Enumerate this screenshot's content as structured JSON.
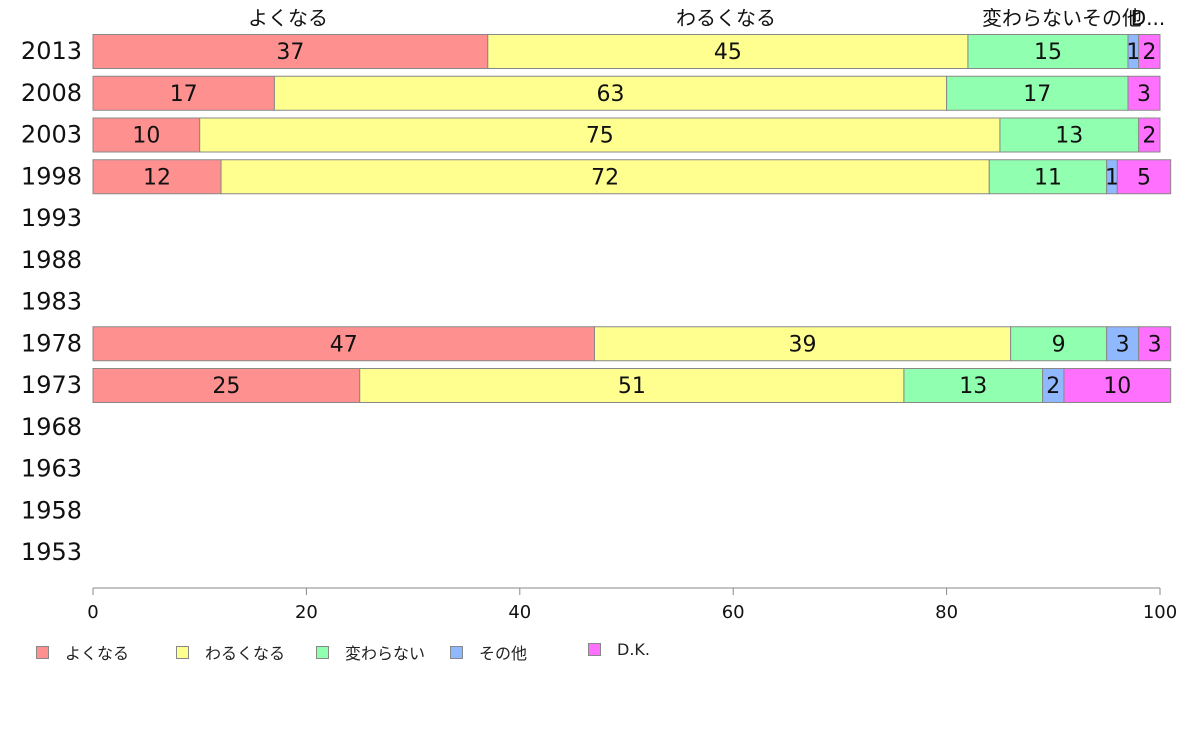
{
  "chart_data": {
    "type": "bar",
    "orientation": "horizontal",
    "stacked": true,
    "categories": [
      "2013",
      "2008",
      "2003",
      "1998",
      "1993",
      "1988",
      "1983",
      "1978",
      "1973",
      "1968",
      "1963",
      "1958",
      "1953"
    ],
    "series": [
      {
        "name": "よくなる",
        "color": "#ff9090",
        "values": [
          37,
          17,
          10,
          12,
          null,
          null,
          null,
          47,
          25,
          null,
          null,
          null,
          null
        ]
      },
      {
        "name": "わるくなる",
        "color": "#ffff90",
        "values": [
          45,
          63,
          75,
          72,
          null,
          null,
          null,
          39,
          51,
          null,
          null,
          null,
          null
        ]
      },
      {
        "name": "変わらない",
        "color": "#90ffb0",
        "values": [
          15,
          17,
          13,
          11,
          null,
          null,
          null,
          9,
          13,
          null,
          null,
          null,
          null
        ]
      },
      {
        "name": "その他",
        "color": "#90b8ff",
        "values": [
          1,
          0,
          0,
          1,
          null,
          null,
          null,
          3,
          2,
          null,
          null,
          null,
          null
        ]
      },
      {
        "name": "D.K.",
        "color": "#ff70ff",
        "values": [
          2,
          3,
          2,
          5,
          null,
          null,
          null,
          3,
          10,
          null,
          null,
          null,
          null
        ]
      }
    ],
    "top_labels": [
      "よくなる",
      "わるくなる",
      "変わらないその他",
      "D..."
    ],
    "xlim": [
      0,
      100
    ],
    "xticks": [
      0,
      20,
      40,
      60,
      80,
      100
    ],
    "grid": false,
    "legend_position": "bottom"
  }
}
